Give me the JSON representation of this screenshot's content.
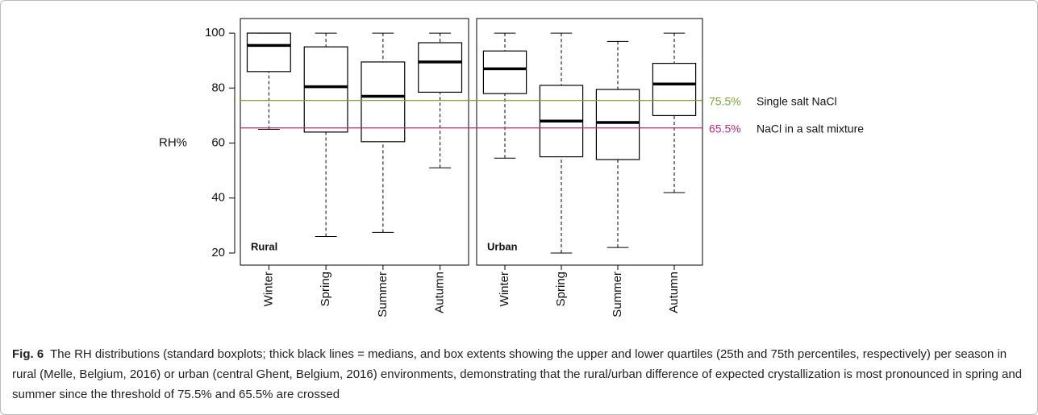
{
  "chart_data": {
    "type": "boxplot",
    "ylabel": "RH%",
    "ylim": [
      15.6,
      105.3
    ],
    "yticks": [
      20,
      40,
      60,
      80,
      100
    ],
    "panels": [
      {
        "label": "Rural",
        "categories": [
          "Winter",
          "Spring",
          "Summer",
          "Autumn"
        ],
        "boxes": [
          {
            "min": 65,
            "q1": 86,
            "median": 95.5,
            "q3": 100,
            "max": 100
          },
          {
            "min": 26,
            "q1": 64,
            "median": 80.5,
            "q3": 95,
            "max": 100
          },
          {
            "min": 27.5,
            "q1": 60.5,
            "median": 77,
            "q3": 89.5,
            "max": 100
          },
          {
            "min": 51,
            "q1": 78.5,
            "median": 89.5,
            "q3": 96.5,
            "max": 100
          }
        ]
      },
      {
        "label": "Urban",
        "categories": [
          "Winter",
          "Spring",
          "Summer",
          "Autumn"
        ],
        "boxes": [
          {
            "min": 54.5,
            "q1": 78,
            "median": 87,
            "q3": 93.5,
            "max": 100
          },
          {
            "min": 20,
            "q1": 55,
            "median": 68,
            "q3": 81,
            "max": 100
          },
          {
            "min": 22,
            "q1": 54,
            "median": 67.5,
            "q3": 79.5,
            "max": 97
          },
          {
            "min": 42,
            "q1": 70,
            "median": 81.5,
            "q3": 89,
            "max": 100
          }
        ]
      }
    ],
    "reference_lines": [
      {
        "value": 75.5,
        "label": "75.5%",
        "text": "Single salt NaCl",
        "color": "#7aa33c"
      },
      {
        "value": 65.5,
        "label": "65.5%",
        "text": "NaCl in a salt mixture",
        "color": "#b0307a"
      }
    ]
  },
  "caption": {
    "label": "Fig. 6",
    "text": "The RH distributions (standard boxplots; thick black lines = medians, and box extents showing the upper and lower quartiles (25th and 75th percentiles, respectively) per season in rural (Melle, Belgium, 2016) or urban (central Ghent, Belgium, 2016) environments, demonstrating that the rural/urban difference of expected crystallization is most pronounced in spring and summer since the threshold of 75.5% and 65.5% are crossed"
  }
}
